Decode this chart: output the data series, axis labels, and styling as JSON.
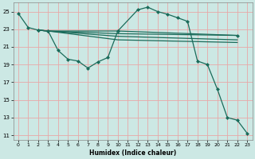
{
  "xlabel": "Humidex (Indice chaleur)",
  "bg_color": "#cce8e4",
  "grid_color": "#e8a8a8",
  "line_color": "#1a6b5a",
  "xlim": [
    -0.5,
    23.5
  ],
  "ylim": [
    10.5,
    26.0
  ],
  "xticks": [
    0,
    1,
    2,
    3,
    4,
    5,
    6,
    7,
    8,
    9,
    10,
    11,
    12,
    13,
    14,
    15,
    16,
    17,
    18,
    19,
    20,
    21,
    22,
    23
  ],
  "yticks": [
    11,
    13,
    15,
    17,
    19,
    21,
    23,
    25
  ],
  "line1_x": [
    0,
    1,
    2,
    3,
    10,
    22
  ],
  "line1_y": [
    24.8,
    23.2,
    22.9,
    22.8,
    22.8,
    22.3
  ],
  "line2_x": [
    2,
    3,
    4,
    5,
    6,
    7,
    8,
    9,
    10,
    12,
    13,
    14,
    15,
    16,
    17,
    18,
    19,
    20,
    21,
    22,
    23
  ],
  "line2_y": [
    22.9,
    22.8,
    20.6,
    19.6,
    19.4,
    18.6,
    19.3,
    19.8,
    22.8,
    25.2,
    25.5,
    25.0,
    24.7,
    24.3,
    23.9,
    19.4,
    19.0,
    16.2,
    13.0,
    12.7,
    11.2
  ],
  "line3_x": [
    2,
    3,
    10,
    22
  ],
  "line3_y": [
    22.9,
    22.8,
    22.5,
    22.3
  ],
  "line4_x": [
    2,
    3,
    10,
    22
  ],
  "line4_y": [
    22.9,
    22.8,
    22.2,
    21.8
  ],
  "line5_x": [
    2,
    3,
    10,
    22
  ],
  "line5_y": [
    22.9,
    22.8,
    21.8,
    21.5
  ]
}
